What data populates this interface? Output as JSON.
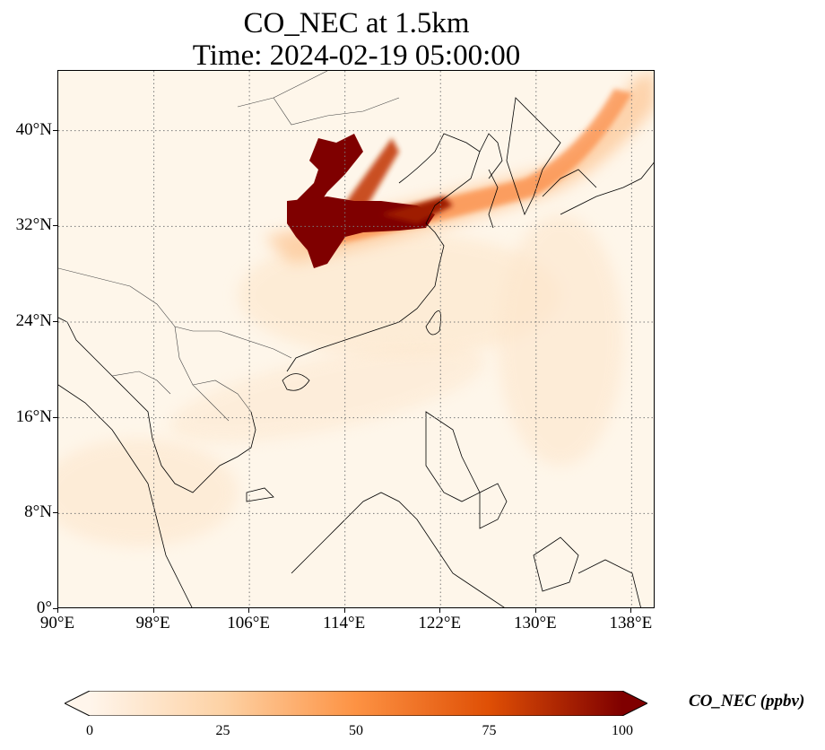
{
  "title": {
    "line1": "CO_NEC at 1.5km",
    "line2": "Time: 2024-02-19 05:00:00"
  },
  "map": {
    "lon_range": [
      90,
      140
    ],
    "lat_range": [
      0,
      45
    ],
    "background_color": "#fef6ea",
    "gridlines": "dotted",
    "y_ticks": [
      {
        "value": 40,
        "label": "40°N"
      },
      {
        "value": 32,
        "label": "32°N"
      },
      {
        "value": 24,
        "label": "24°N"
      },
      {
        "value": 16,
        "label": "16°N"
      },
      {
        "value": 8,
        "label": "8°N"
      },
      {
        "value": 0,
        "label": "0°"
      }
    ],
    "x_ticks": [
      {
        "value": 90,
        "label": "90°E"
      },
      {
        "value": 98,
        "label": "98°E"
      },
      {
        "value": 106,
        "label": "106°E"
      },
      {
        "value": 114,
        "label": "114°E"
      },
      {
        "value": 122,
        "label": "122°E"
      },
      {
        "value": 130,
        "label": "130°E"
      },
      {
        "value": 138,
        "label": "138°E"
      }
    ]
  },
  "colorbar": {
    "label": "CO_NEC (ppbv)",
    "range": [
      0,
      100
    ],
    "extend": "both",
    "colormap": [
      "#fff5eb",
      "#fdd2a5",
      "#fd9243",
      "#df4f05",
      "#7f0000"
    ],
    "ticks": [
      {
        "value": 0,
        "label": "0"
      },
      {
        "value": 25,
        "label": "25"
      },
      {
        "value": 50,
        "label": "50"
      },
      {
        "value": 75,
        "label": "75"
      },
      {
        "value": 100,
        "label": "100"
      }
    ]
  }
}
